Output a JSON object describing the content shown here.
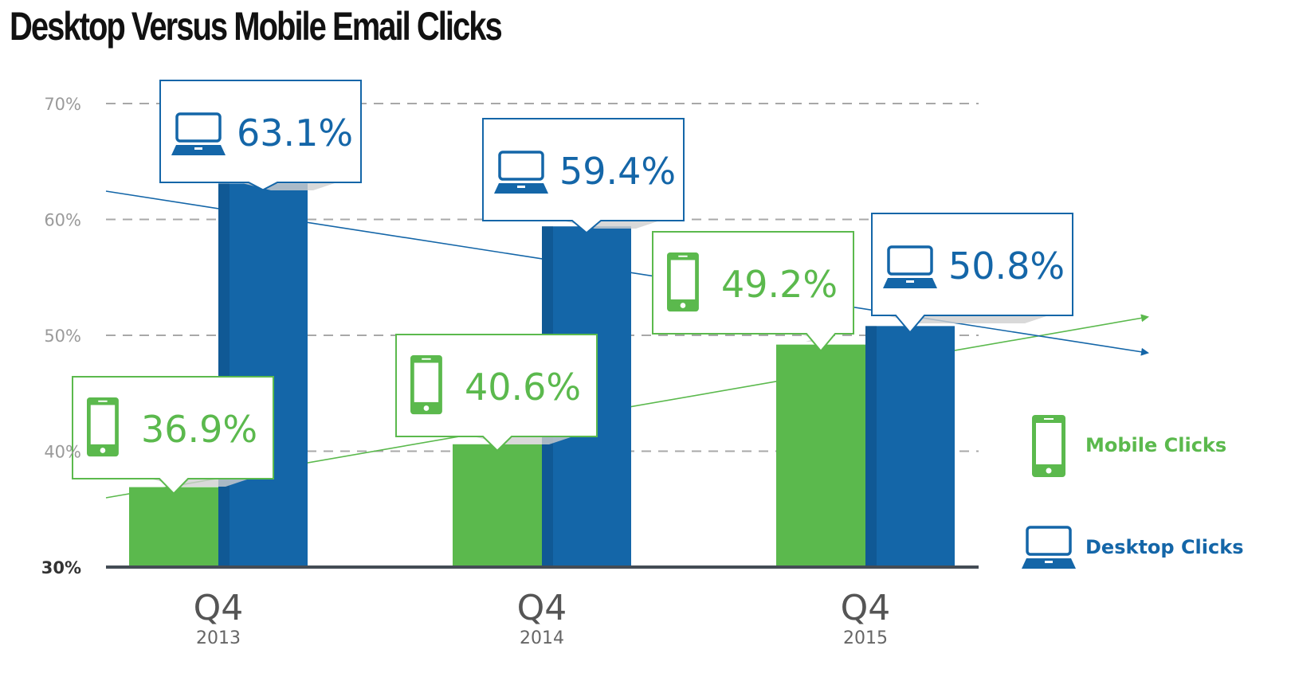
{
  "chart_data": {
    "type": "bar",
    "title": "Desktop Versus Mobile Email Clicks",
    "categories": [
      {
        "quarter": "Q4",
        "year": "2013"
      },
      {
        "quarter": "Q4",
        "year": "2014"
      },
      {
        "quarter": "Q4",
        "year": "2015"
      }
    ],
    "series": [
      {
        "name": "Mobile Clicks",
        "color": "#5bb94d",
        "icon": "mobile-phone-icon",
        "values": [
          36.9,
          40.6,
          49.2
        ],
        "labels": [
          "36.9%",
          "40.6%",
          "49.2%"
        ]
      },
      {
        "name": "Desktop Clicks",
        "color": "#1466a8",
        "icon": "laptop-icon",
        "values": [
          63.1,
          59.4,
          50.8
        ],
        "labels": [
          "63.1%",
          "59.4%",
          "50.8%"
        ]
      }
    ],
    "yticks": [
      {
        "value": 30,
        "label": "30%"
      },
      {
        "value": 40,
        "label": "40%"
      },
      {
        "value": 50,
        "label": "50%"
      },
      {
        "value": 60,
        "label": "60%"
      },
      {
        "value": 70,
        "label": "70%"
      }
    ],
    "ylim": [
      30,
      70
    ],
    "grid": true,
    "trend_lines": true,
    "legend_position": "right"
  }
}
